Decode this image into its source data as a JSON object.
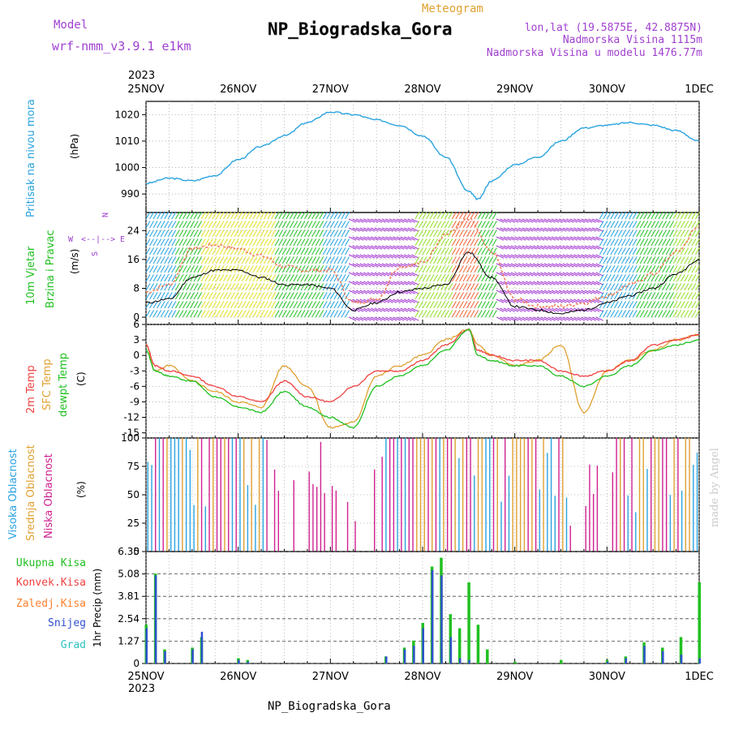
{
  "header": {
    "model_label": "Model",
    "model_name": "wrf-nmm_v3.9.1 e1km",
    "product": "Meteogram",
    "station": "NP_Biogradska_Gora",
    "lonlat": "lon,lat (19.5875E, 42.8875N)",
    "altitude": "Nadmorska Visina 1115m",
    "model_altitude": "Nadmorska Visina u modelu 1476.77m",
    "footer_station": "NP_Biogradska_Gora",
    "credit": "made by Angel"
  },
  "time_axis": {
    "year": "2023",
    "ticks": [
      "25NOV",
      "26NOV",
      "27NOV",
      "28NOV",
      "29NOV",
      "30NOV",
      "1DEC"
    ]
  },
  "colors": {
    "pressure": "#29a3e0",
    "temp2m": "#f04040",
    "sfc": "#e0a030",
    "dewpt": "#20c020",
    "wind_mean": "#000000",
    "gust": "#f08060",
    "cloud_high": "#29a3e0",
    "cloud_mid": "#e0a030",
    "cloud_low": "#d02090",
    "precip_total": "#20c020",
    "precip_snow": "#3050d0",
    "precip_conv": "#f04040",
    "precip_frz": "#ff8030",
    "precip_grad": "#30c0c0",
    "model_text": "#a040d0"
  },
  "panel_labels": {
    "pressure": {
      "title": "Pritisak na nivou mora",
      "unit": "(hPa)"
    },
    "wind": {
      "title1": "10m Vjetar",
      "title2": "Brzina i Pravac",
      "unit": "(m/s)",
      "compass_ns": "N",
      "compass_s": "S",
      "compass_w": "W",
      "compass_e": "E",
      "compass_mid": "<--|-->"
    },
    "temp": {
      "t2m": "2m Temp",
      "sfc": "SFC Temp",
      "dew": "dewpt Temp",
      "unit": "(C)"
    },
    "cloud": {
      "high": "Visoka Oblacnost",
      "mid": "Srednja Oblacnost",
      "low": "Niska Oblacnost",
      "unit": "(%)"
    },
    "precip": {
      "total": "Ukupna Kisa",
      "conv": "Konvek.Kisa",
      "frz": "Zaledj.Kisa",
      "snow": "Snijeg",
      "grad": "Grad",
      "unit": "1hr Precip (mm)"
    }
  },
  "chart_data": [
    {
      "type": "line",
      "title": "Pritisak na nivou mora (hPa)",
      "ylim": [
        983,
        1025
      ],
      "yticks": [
        "990",
        "1000",
        "1010",
        "1020"
      ],
      "x_days": [
        0,
        0.25,
        0.5,
        0.75,
        1,
        1.25,
        1.5,
        1.75,
        2,
        2.25,
        2.5,
        2.75,
        3,
        3.25,
        3.5,
        3.6,
        3.75,
        4,
        4.25,
        4.5,
        4.75,
        5,
        5.25,
        5.5,
        5.75,
        6
      ],
      "series": [
        {
          "values": [
            994,
            996,
            995,
            997,
            1003,
            1008,
            1012,
            1017,
            1021,
            1020,
            1018,
            1016,
            1012,
            1004,
            991,
            988,
            995,
            1001,
            1004,
            1010,
            1015,
            1016,
            1017,
            1016,
            1014,
            1010
          ]
        }
      ]
    },
    {
      "type": "line",
      "title": "10m Vjetar Brzina i Pravac (m/s)",
      "ylim": [
        -2,
        29
      ],
      "yticks": [
        "0",
        "8",
        "16",
        "24"
      ],
      "x_days": [
        0,
        0.25,
        0.5,
        0.75,
        1,
        1.25,
        1.5,
        1.75,
        2,
        2.25,
        2.5,
        2.75,
        3,
        3.25,
        3.5,
        3.75,
        4,
        4.25,
        4.5,
        4.75,
        5,
        5.25,
        5.5,
        5.75,
        6
      ],
      "series": [
        {
          "values": [
            4,
            5,
            11,
            13,
            13,
            11,
            9,
            9,
            8,
            2,
            4,
            7,
            8,
            9,
            18,
            11,
            3,
            2,
            1,
            2,
            4,
            6,
            8,
            12,
            16
          ]
        },
        {
          "values": [
            7,
            9,
            19,
            20,
            19,
            17,
            14,
            13,
            13,
            4,
            5,
            14,
            15,
            23,
            27,
            18,
            5,
            3,
            3,
            4,
            6,
            9,
            12,
            18,
            25
          ]
        }
      ]
    },
    {
      "type": "line",
      "title": "Temperature (C)",
      "ylim": [
        -16,
        6
      ],
      "yticks": [
        "-15",
        "-12",
        "-9",
        "-6",
        "-3",
        "0",
        "3",
        "6"
      ],
      "x_days": [
        0,
        0.1,
        0.25,
        0.5,
        0.75,
        1,
        1.25,
        1.5,
        1.75,
        2,
        2.25,
        2.5,
        2.75,
        3,
        3.25,
        3.5,
        3.6,
        3.75,
        4,
        4.25,
        4.5,
        4.75,
        5,
        5.25,
        5.5,
        5.75,
        6
      ],
      "series": [
        {
          "values": [
            2,
            -2,
            -3,
            -4,
            -6,
            -8,
            -9,
            -5,
            -8,
            -9,
            -6,
            -3,
            -3,
            -1,
            2,
            5,
            1,
            0,
            -1,
            -1,
            -3,
            -4,
            -3,
            -1,
            2,
            3,
            4
          ]
        },
        {
          "values": [
            2,
            -3,
            -2,
            -5,
            -7,
            -9,
            -10,
            -2,
            -6,
            -14,
            -13,
            -4,
            -2,
            0,
            3,
            5,
            2,
            0,
            -2,
            -1,
            2,
            -11,
            -3,
            -1,
            1,
            3,
            4
          ]
        },
        {
          "values": [
            1,
            -3,
            -4,
            -5,
            -8,
            -10,
            -11,
            -7,
            -10,
            -12,
            -14,
            -6,
            -4,
            -2,
            1,
            5,
            0,
            -1,
            -2,
            -2,
            -4,
            -6,
            -4,
            -2,
            1,
            2,
            3
          ]
        }
      ]
    },
    {
      "type": "bar",
      "title": "Oblacnost (%)",
      "ylim": [
        0,
        100
      ],
      "yticks": [
        "0",
        "25",
        "50",
        "75",
        "100"
      ]
    },
    {
      "type": "bar",
      "title": "1hr Precip (mm)",
      "ylim": [
        0,
        6.35
      ],
      "yticks": [
        "0",
        "1.27",
        "2.54",
        "3.81",
        "5.08",
        "6.35"
      ],
      "x_days": [
        0,
        0.1,
        0.2,
        0.5,
        0.6,
        1.0,
        1.1,
        2.6,
        2.8,
        2.9,
        3.0,
        3.1,
        3.2,
        3.3,
        3.4,
        3.5,
        3.6,
        3.7,
        4.0,
        4.5,
        5.0,
        5.2,
        5.4,
        5.6,
        5.8,
        6.0
      ],
      "series": [
        {
          "name": "Ukupna Kisa",
          "values": [
            2.2,
            5.1,
            0.8,
            0.9,
            1.5,
            0.3,
            0.2,
            0.4,
            0.9,
            1.3,
            2.3,
            5.5,
            6.0,
            2.8,
            2.0,
            4.6,
            2.2,
            0.8,
            0.1,
            0.2,
            0.2,
            0.4,
            1.2,
            0.9,
            1.5,
            4.6
          ]
        },
        {
          "name": "Snijeg",
          "values": [
            2.0,
            5.0,
            0.7,
            0.8,
            1.8,
            0.2,
            0.1,
            0.4,
            0.8,
            1.0,
            2.0,
            5.3,
            5.0,
            1.5,
            0.3,
            0.2,
            0.0,
            0.0,
            0.0,
            0.0,
            0.1,
            0.3,
            1.0,
            0.7,
            0.5,
            0.3
          ]
        }
      ]
    }
  ]
}
